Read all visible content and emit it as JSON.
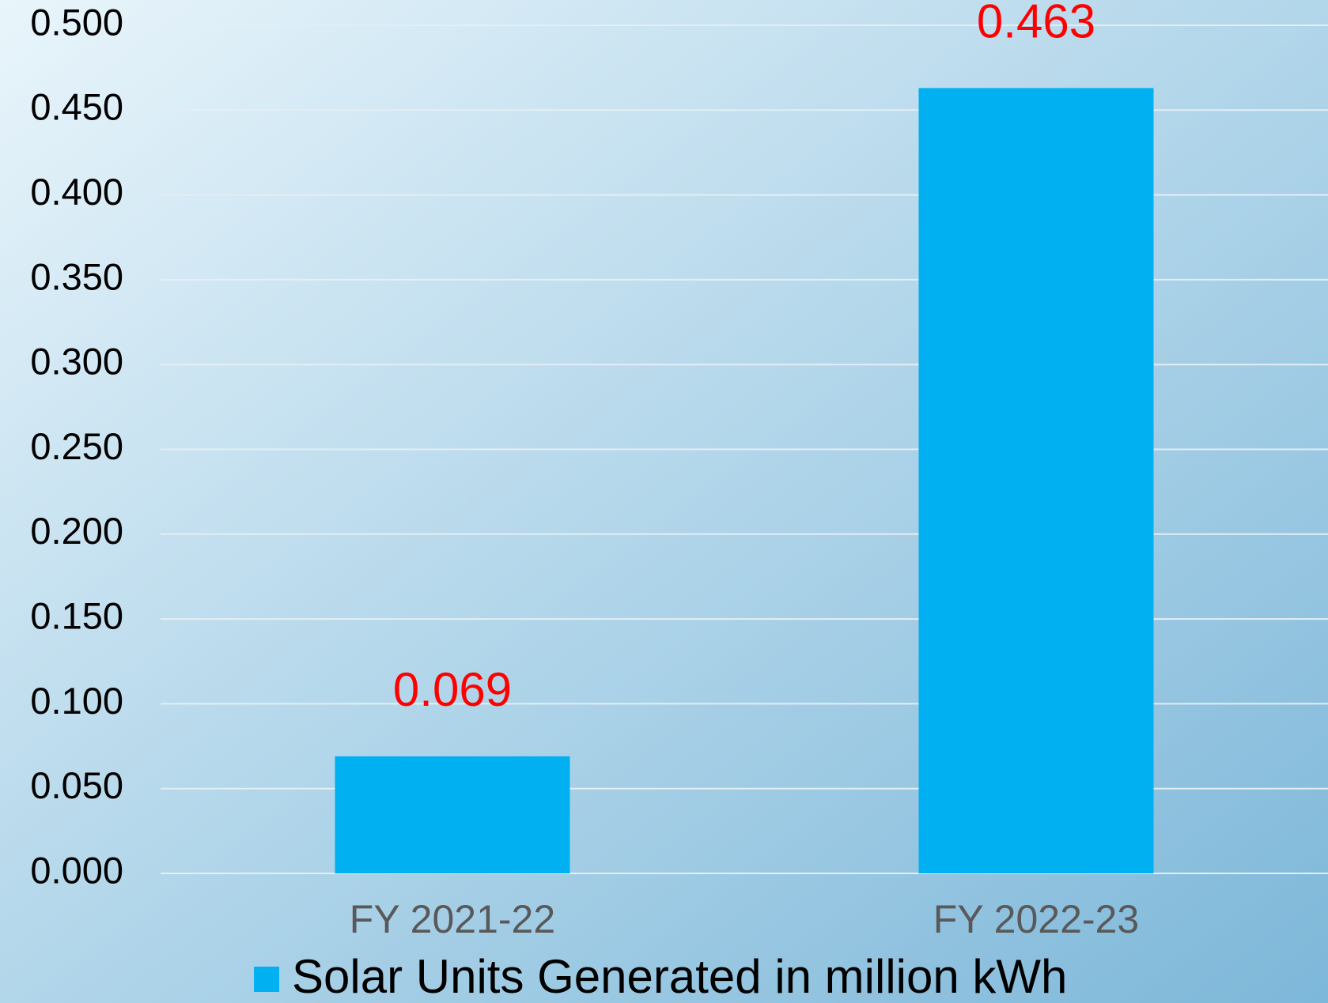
{
  "chart_data": {
    "type": "bar",
    "categories": [
      "FY 2021-22",
      "FY 2022-23"
    ],
    "series": [
      {
        "name": "Solar Units Generated in million kWh",
        "color": "#00b0f0",
        "values": [
          0.069,
          0.463
        ]
      }
    ],
    "value_label_color": "#ff0000",
    "ylim": [
      0,
      0.5
    ],
    "yticks": [
      {
        "value": 0,
        "label": "0.000"
      },
      {
        "value": 0.05,
        "label": "0.050"
      },
      {
        "value": 0.1,
        "label": "0.100"
      },
      {
        "value": 0.15,
        "label": "0.150"
      },
      {
        "value": 0.2,
        "label": "0.200"
      },
      {
        "value": 0.25,
        "label": "0.250"
      },
      {
        "value": 0.3,
        "label": "0.300"
      },
      {
        "value": 0.35,
        "label": "0.350"
      },
      {
        "value": 0.4,
        "label": "0.400"
      },
      {
        "value": 0.45,
        "label": "0.450"
      },
      {
        "value": 0.5,
        "label": "0.500"
      }
    ],
    "grid": true,
    "legend": "bottom"
  }
}
